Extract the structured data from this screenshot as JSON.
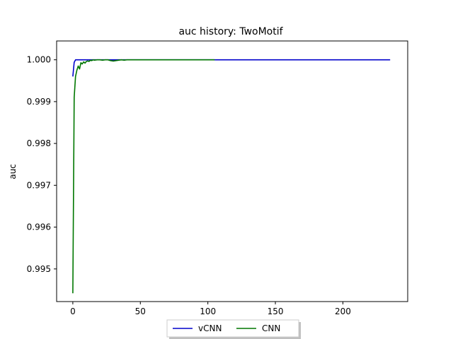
{
  "chart_data": {
    "type": "line",
    "title": "auc history:  TwoMotif",
    "xlabel": "",
    "ylabel": "auc",
    "xlim": [
      -12,
      248
    ],
    "ylim": [
      0.99422,
      1.00045
    ],
    "xticks": [
      0,
      50,
      100,
      150,
      200
    ],
    "xtick_labels": [
      "0",
      "50",
      "100",
      "150",
      "200"
    ],
    "yticks": [
      0.995,
      0.996,
      0.997,
      0.998,
      0.999,
      1.0
    ],
    "ytick_labels": [
      "0.995",
      "0.996",
      "0.997",
      "0.998",
      "0.999",
      "1.000"
    ],
    "grid": false,
    "legend_position": "bottom-center",
    "series": [
      {
        "name": "vCNN",
        "color": "#0000cc",
        "x": [
          0,
          1,
          2,
          3,
          235
        ],
        "y": [
          0.9996,
          0.99994,
          1.0,
          1.0,
          1.0
        ]
      },
      {
        "name": "CNN",
        "color": "#007700",
        "x": [
          0,
          1,
          2,
          3,
          4,
          5,
          6,
          7,
          8,
          9,
          10,
          11,
          12,
          13,
          14,
          15,
          16,
          18,
          20,
          22,
          24,
          26,
          28,
          30,
          32,
          34,
          36,
          38,
          40,
          45,
          50,
          60,
          70,
          80,
          90,
          100,
          105
        ],
        "y": [
          0.99442,
          0.9991,
          0.9996,
          0.99975,
          0.99985,
          0.99978,
          0.99993,
          0.9999,
          0.99995,
          0.99992,
          0.99996,
          0.99997,
          0.99996,
          0.99999,
          0.99998,
          1.0,
          0.99999,
          1.0,
          1.0,
          0.99999,
          1.0,
          1.0,
          0.99998,
          0.99997,
          0.99998,
          0.99999,
          1.0,
          0.99999,
          1.0,
          1.0,
          1.0,
          1.0,
          1.0,
          1.0,
          1.0,
          1.0,
          1.0
        ]
      }
    ]
  }
}
